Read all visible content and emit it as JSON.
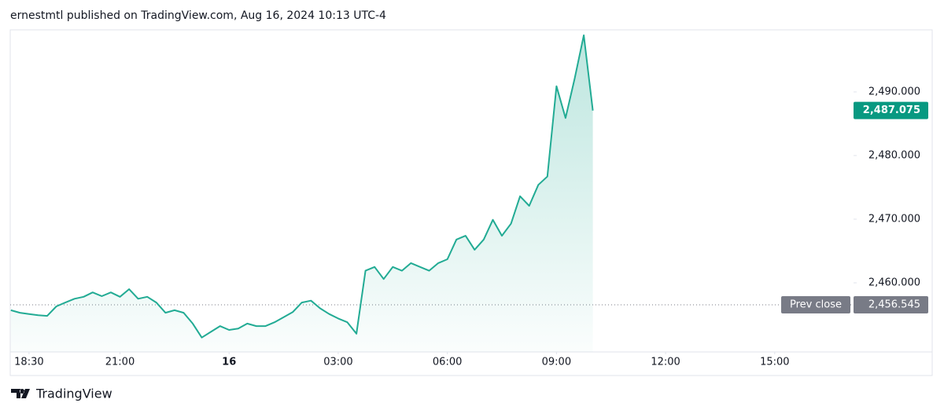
{
  "header": "ernestmtl published on TradingView.com, Aug 16, 2024 10:13 UTC-4",
  "footer": "TradingView",
  "chart_data": {
    "type": "area",
    "color": "#22ab94",
    "grid": false,
    "x": [
      "Aug 15 18:00",
      "Aug 15 18:15",
      "Aug 15 18:30",
      "Aug 15 18:45",
      "Aug 15 19:00",
      "Aug 15 19:15",
      "Aug 15 19:30",
      "Aug 15 19:45",
      "Aug 15 20:00",
      "Aug 15 20:15",
      "Aug 15 20:30",
      "Aug 15 20:45",
      "Aug 15 21:00",
      "Aug 15 21:15",
      "Aug 15 21:30",
      "Aug 15 21:45",
      "Aug 15 22:00",
      "Aug 15 22:15",
      "Aug 15 22:30",
      "Aug 15 22:45",
      "Aug 15 23:00",
      "Aug 15 23:15",
      "Aug 15 23:30",
      "Aug 15 23:45",
      "Aug 16 00:00",
      "Aug 16 00:15",
      "Aug 16 00:30",
      "Aug 16 00:45",
      "Aug 16 01:00",
      "Aug 16 01:15",
      "Aug 16 01:30",
      "Aug 16 01:45",
      "Aug 16 02:00",
      "Aug 16 02:15",
      "Aug 16 02:30",
      "Aug 16 02:45",
      "Aug 16 03:00",
      "Aug 16 03:15",
      "Aug 16 03:30",
      "Aug 16 03:45",
      "Aug 16 04:00",
      "Aug 16 04:15",
      "Aug 16 04:30",
      "Aug 16 04:45",
      "Aug 16 05:00",
      "Aug 16 05:15",
      "Aug 16 05:30",
      "Aug 16 05:45",
      "Aug 16 06:00",
      "Aug 16 06:15",
      "Aug 16 06:30",
      "Aug 16 06:45",
      "Aug 16 07:00",
      "Aug 16 07:15",
      "Aug 16 07:30",
      "Aug 16 07:45",
      "Aug 16 08:00",
      "Aug 16 08:15",
      "Aug 16 08:30",
      "Aug 16 08:45",
      "Aug 16 09:00",
      "Aug 16 09:15",
      "Aug 16 09:30",
      "Aug 16 09:45",
      "Aug 16 10:00"
    ],
    "values": [
      2455.7,
      2455.3,
      2455.1,
      2454.9,
      2454.8,
      2456.3,
      2456.9,
      2457.5,
      2457.8,
      2458.5,
      2457.9,
      2458.5,
      2457.8,
      2459.0,
      2457.5,
      2457.8,
      2456.9,
      2455.3,
      2455.7,
      2455.3,
      2453.6,
      2451.4,
      2452.3,
      2453.2,
      2452.6,
      2452.8,
      2453.6,
      2453.2,
      2453.2,
      2453.8,
      2454.6,
      2455.4,
      2456.9,
      2457.2,
      2456.0,
      2455.1,
      2454.4,
      2453.8,
      2452.0,
      2461.9,
      2462.5,
      2460.6,
      2462.5,
      2461.9,
      2463.1,
      2462.5,
      2461.9,
      2463.1,
      2463.7,
      2466.8,
      2467.4,
      2465.2,
      2466.8,
      2469.9,
      2467.4,
      2469.3,
      2473.6,
      2472.1,
      2475.4,
      2476.7,
      2490.9,
      2485.9,
      2492.1,
      2498.9,
      2487.075
    ],
    "xlim": [
      "Aug 15 17:59",
      "Aug 16 17:10"
    ],
    "xticks": [
      {
        "value": "Aug 15 18:30",
        "label": "18:30"
      },
      {
        "value": "Aug 15 21:00",
        "label": "21:00"
      },
      {
        "value": "Aug 16 00:00",
        "label": "16"
      },
      {
        "value": "Aug 16 03:00",
        "label": "03:00"
      },
      {
        "value": "Aug 16 06:00",
        "label": "06:00"
      },
      {
        "value": "Aug 16 09:00",
        "label": "09:00"
      },
      {
        "value": "Aug 16 12:00",
        "label": "12:00"
      },
      {
        "value": "Aug 16 15:00",
        "label": "15:00"
      }
    ],
    "ylim": [
      2449.14,
      2499.75
    ],
    "yticks": [
      {
        "value": 2460,
        "label": "2,460.000"
      },
      {
        "value": 2470,
        "label": "2,470.000"
      },
      {
        "value": 2480,
        "label": "2,480.000"
      },
      {
        "value": 2490,
        "label": "2,490.000"
      }
    ],
    "last_price": {
      "value": 2487.075,
      "label": "2,487.075",
      "color": "#089981"
    },
    "prev_close": {
      "name": "Prev close",
      "value": 2456.545,
      "label": "2,456.545",
      "color": "#787b86"
    }
  }
}
